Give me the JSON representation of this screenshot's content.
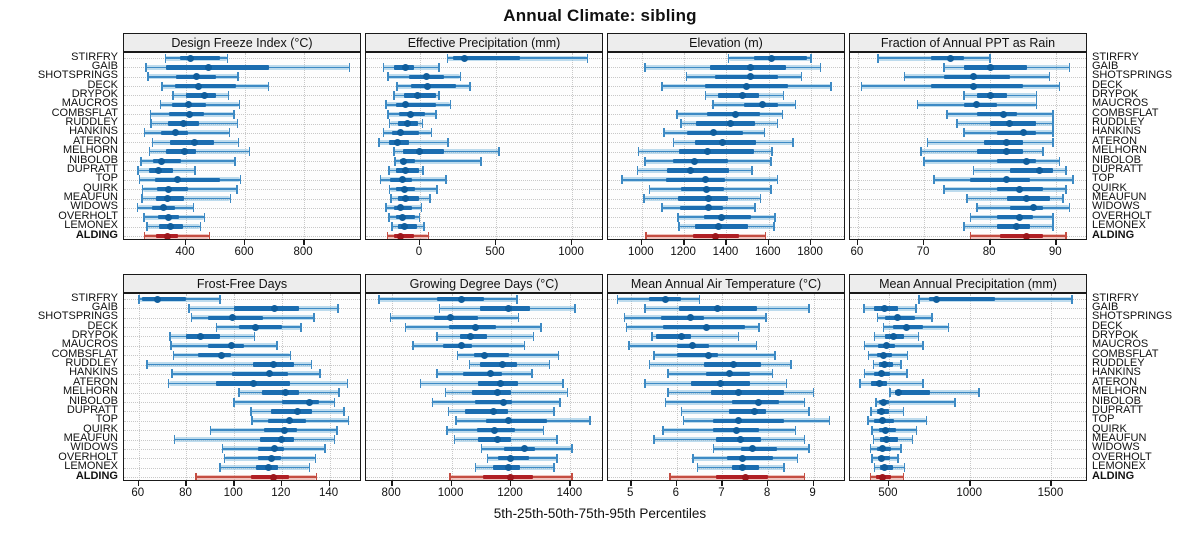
{
  "title": "Annual Climate: sibling",
  "caption": "5th-25th-50th-75th-95th Percentiles",
  "sites": [
    "STIRFRY",
    "GAIB",
    "SHOTSPRINGS",
    "DECK",
    "DRYPOK",
    "MAUCROS",
    "COMBSFLAT",
    "RUDDLEY",
    "HANKINS",
    "ATERON",
    "MELHORN",
    "NIBOLOB",
    "DUPRATT",
    "TOP",
    "QUIRK",
    "MEAUFUN",
    "WIDOWS",
    "OVERHOLT",
    "LEMONEX",
    "ALDING"
  ],
  "highlight_site": "ALDING",
  "colors": {
    "blue_line": "#3d8ac4",
    "blue_band": "rgba(125,185,222,0.5)",
    "blue_box": "#1b6db0",
    "blue_dot": "#0f5d9c",
    "red_line": "#c44d42",
    "red_band": "rgba(228,148,139,0.55)",
    "red_box": "#b01f24",
    "red_dot": "#9c161b",
    "grid": "#c8c8c8",
    "border": "#1a1a1a",
    "strip_bg": "#ededed"
  },
  "chart_data": [
    {
      "type": "percentile-dotplot",
      "title": "Design Freeze Index (°C)",
      "row": 0,
      "col": 0,
      "xlim": [
        190,
        996
      ],
      "ticks": [
        400,
        600,
        800
      ],
      "percentiles": [
        "5th",
        "25th",
        "50th",
        "75th",
        "95th"
      ],
      "series": [
        [
          330,
          380,
          415,
          515,
          540
        ],
        [
          264,
          332,
          475,
          681,
          953
        ],
        [
          271,
          366,
          434,
          502,
          576
        ],
        [
          318,
          363,
          442,
          569,
          680
        ],
        [
          355,
          400,
          462,
          502,
          544
        ],
        [
          313,
          351,
          408,
          468,
          581
        ],
        [
          279,
          341,
          411,
          460,
          562
        ],
        [
          281,
          338,
          392,
          445,
          575
        ],
        [
          259,
          315,
          366,
          406,
          547
        ],
        [
          287,
          347,
          428,
          494,
          577
        ],
        [
          276,
          332,
          394,
          434,
          615
        ],
        [
          247,
          287,
          318,
          383,
          566
        ],
        [
          238,
          276,
          306,
          355,
          430
        ],
        [
          242,
          296,
          372,
          516,
          584
        ],
        [
          253,
          302,
          340,
          406,
          573
        ],
        [
          250,
          298,
          336,
          394,
          550
        ],
        [
          236,
          284,
          324,
          363,
          426
        ],
        [
          257,
          304,
          340,
          377,
          462
        ],
        [
          268,
          310,
          347,
          389,
          449
        ],
        [
          259,
          298,
          336,
          374,
          479
        ]
      ]
    },
    {
      "type": "percentile-dotplot",
      "title": "Effective Precipitation (mm)",
      "row": 0,
      "col": 1,
      "xlim": [
        -355,
        1210
      ],
      "ticks": [
        0,
        500,
        1000
      ],
      "percentiles": [
        "5th",
        "25th",
        "50th",
        "75th",
        "95th"
      ],
      "series": [
        [
          180,
          215,
          290,
          660,
          1100
        ],
        [
          -240,
          -170,
          -95,
          -40,
          125
        ],
        [
          -210,
          -70,
          45,
          160,
          265
        ],
        [
          -150,
          -60,
          50,
          235,
          330
        ],
        [
          -170,
          -105,
          -15,
          105,
          125
        ],
        [
          -225,
          -160,
          -95,
          105,
          200
        ],
        [
          -210,
          -140,
          -65,
          35,
          105
        ],
        [
          -200,
          -145,
          -85,
          -15,
          15
        ],
        [
          -240,
          -185,
          -125,
          -5,
          75
        ],
        [
          -270,
          -205,
          -145,
          -75,
          185
        ],
        [
          -170,
          -110,
          -5,
          160,
          520
        ],
        [
          -165,
          -130,
          -110,
          -30,
          400
        ],
        [
          -205,
          -160,
          -95,
          -5,
          20
        ],
        [
          -260,
          -195,
          -115,
          -50,
          170
        ],
        [
          -200,
          -155,
          -100,
          -30,
          110
        ],
        [
          -190,
          -145,
          -95,
          -5,
          65
        ],
        [
          -225,
          -170,
          -125,
          -50,
          10
        ],
        [
          -205,
          -160,
          -115,
          -35,
          -5
        ],
        [
          -185,
          -145,
          -105,
          -20,
          25
        ],
        [
          -215,
          -170,
          -125,
          -40,
          55
        ]
      ]
    },
    {
      "type": "percentile-dotplot",
      "title": "Elevation (m)",
      "row": 0,
      "col": 2,
      "xlim": [
        840,
        1965
      ],
      "ticks": [
        1000,
        1200,
        1400,
        1600,
        1800
      ],
      "percentiles": [
        "5th",
        "25th",
        "50th",
        "75th",
        "95th"
      ],
      "series": [
        [
          1410,
          1530,
          1615,
          1780,
          1800
        ],
        [
          1015,
          1320,
          1515,
          1680,
          1845
        ],
        [
          1210,
          1345,
          1515,
          1645,
          1755
        ],
        [
          1095,
          1300,
          1495,
          1690,
          1895
        ],
        [
          1300,
          1360,
          1475,
          1555,
          1670
        ],
        [
          1335,
          1485,
          1570,
          1645,
          1725
        ],
        [
          1165,
          1310,
          1445,
          1560,
          1665
        ],
        [
          1185,
          1255,
          1420,
          1535,
          1640
        ],
        [
          1105,
          1215,
          1340,
          1480,
          1580
        ],
        [
          1150,
          1250,
          1380,
          1540,
          1715
        ],
        [
          985,
          1175,
          1310,
          1530,
          1615
        ],
        [
          1015,
          1145,
          1250,
          1405,
          1610
        ],
        [
          980,
          1120,
          1230,
          1410,
          1520
        ],
        [
          905,
          1115,
          1300,
          1395,
          1640
        ],
        [
          1035,
          1185,
          1305,
          1390,
          1610
        ],
        [
          1010,
          1170,
          1315,
          1405,
          1560
        ],
        [
          1095,
          1180,
          1315,
          1385,
          1535
        ],
        [
          1170,
          1295,
          1375,
          1515,
          1630
        ],
        [
          1175,
          1250,
          1360,
          1500,
          1625
        ],
        [
          1020,
          1240,
          1350,
          1460,
          1585
        ]
      ]
    },
    {
      "type": "percentile-dotplot",
      "title": "Fraction of Annual PPT as Rain",
      "row": 0,
      "col": 3,
      "xlim": [
        58.8,
        94.8
      ],
      "ticks": [
        60,
        70,
        80,
        90
      ],
      "percentiles": [
        "5th",
        "25th",
        "50th",
        "75th",
        "95th"
      ],
      "series": [
        [
          63,
          71,
          74,
          76,
          80
        ],
        [
          73,
          76,
          80,
          85.5,
          92
        ],
        [
          67,
          73,
          77.5,
          83,
          89
        ],
        [
          60.5,
          71,
          77.5,
          85,
          90.5
        ],
        [
          76,
          78,
          80,
          82.5,
          87
        ],
        [
          69,
          76,
          78,
          81,
          87
        ],
        [
          73.5,
          78,
          82,
          84,
          89.5
        ],
        [
          75,
          80,
          83,
          87,
          89.5
        ],
        [
          76,
          81,
          85,
          87,
          89.5
        ],
        [
          70.5,
          79,
          82.5,
          85,
          89.5
        ],
        [
          69.5,
          78,
          82.5,
          85,
          88
        ],
        [
          70,
          81,
          85.5,
          87,
          90.5
        ],
        [
          77.5,
          83,
          87.5,
          89.5,
          91.5
        ],
        [
          71.5,
          77,
          82.5,
          86,
          92.5
        ],
        [
          73,
          81,
          84.5,
          88,
          91.5
        ],
        [
          76.5,
          82.5,
          85.5,
          89,
          91
        ],
        [
          78,
          83,
          86.5,
          88,
          92
        ],
        [
          77,
          81,
          84.5,
          86.5,
          89.5
        ],
        [
          76,
          81,
          84,
          86,
          89.5
        ],
        [
          77,
          81.5,
          85.5,
          88,
          91.5
        ]
      ]
    },
    {
      "type": "percentile-dotplot",
      "title": "Frost-Free Days",
      "row": 1,
      "col": 0,
      "xlim": [
        53.8,
        153.6
      ],
      "ticks": [
        60,
        80,
        100,
        120,
        140
      ],
      "percentiles": [
        "5th",
        "25th",
        "50th",
        "75th",
        "95th"
      ],
      "series": [
        [
          60,
          61.5,
          68,
          80,
          94
        ],
        [
          81,
          100,
          117,
          127,
          143.5
        ],
        [
          82,
          89,
          99.5,
          112,
          133.5
        ],
        [
          92.5,
          102,
          109,
          120,
          128
        ],
        [
          73,
          80,
          86,
          94,
          108.5
        ],
        [
          73.5,
          89,
          99,
          104,
          118
        ],
        [
          74.5,
          85,
          94.5,
          98.5,
          123.5
        ],
        [
          63.5,
          108,
          116.5,
          125,
          132.5
        ],
        [
          74,
          99,
          115,
          122.5,
          136
        ],
        [
          72.5,
          92.5,
          108,
          123.5,
          147.5
        ],
        [
          102,
          111.5,
          121.5,
          127,
          144
        ],
        [
          100,
          120,
          131.5,
          135.5,
          142
        ],
        [
          107,
          115.5,
          126.5,
          132.5,
          146
        ],
        [
          107.5,
          114,
          123,
          130,
          148
        ],
        [
          90,
          112.5,
          121,
          126.5,
          143
        ],
        [
          75,
          111,
          120,
          125,
          142
        ],
        [
          95,
          110,
          117,
          121,
          138
        ],
        [
          96,
          110,
          115.5,
          119.5,
          134
        ],
        [
          94,
          109,
          114.5,
          118.5,
          131.5
        ],
        [
          84,
          107,
          116.5,
          123,
          134.5
        ]
      ]
    },
    {
      "type": "percentile-dotplot",
      "title": "Growing Degree Days (°C)",
      "row": 1,
      "col": 1,
      "xlim": [
        712,
        1513
      ],
      "ticks": [
        800,
        1000,
        1200,
        1400
      ],
      "percentiles": [
        "5th",
        "25th",
        "50th",
        "75th",
        "95th"
      ],
      "series": [
        [
          755,
          950,
          1035,
          1110,
          1220
        ],
        [
          960,
          1095,
          1190,
          1265,
          1415
        ],
        [
          795,
          940,
          995,
          1090,
          1225
        ],
        [
          845,
          990,
          1080,
          1150,
          1300
        ],
        [
          950,
          1030,
          1065,
          1120,
          1275
        ],
        [
          870,
          970,
          1035,
          1070,
          1245
        ],
        [
          1020,
          1075,
          1110,
          1195,
          1360
        ],
        [
          1060,
          1095,
          1170,
          1220,
          1330
        ],
        [
          950,
          1040,
          1130,
          1170,
          1270
        ],
        [
          895,
          1090,
          1165,
          1225,
          1375
        ],
        [
          980,
          1070,
          1155,
          1200,
          1390
        ],
        [
          935,
          1080,
          1175,
          1205,
          1365
        ],
        [
          990,
          1045,
          1140,
          1190,
          1345
        ],
        [
          1015,
          1115,
          1190,
          1320,
          1465
        ],
        [
          985,
          1085,
          1145,
          1215,
          1310
        ],
        [
          1010,
          1090,
          1155,
          1200,
          1355
        ],
        [
          1100,
          1175,
          1245,
          1280,
          1405
        ],
        [
          1120,
          1155,
          1200,
          1260,
          1355
        ],
        [
          1080,
          1140,
          1190,
          1230,
          1345
        ],
        [
          995,
          1105,
          1200,
          1275,
          1405
        ]
      ]
    },
    {
      "type": "percentile-dotplot",
      "title": "Mean Annual Air Temperature (°C)",
      "row": 1,
      "col": 2,
      "xlim": [
        4.49,
        9.71
      ],
      "ticks": [
        5,
        6,
        7,
        8,
        9
      ],
      "percentiles": [
        "5th",
        "25th",
        "50th",
        "75th",
        "95th"
      ],
      "series": [
        [
          4.7,
          5.4,
          5.75,
          6.1,
          6.5
        ],
        [
          5.3,
          6.05,
          6.9,
          7.75,
          8.9
        ],
        [
          4.85,
          5.65,
          6.3,
          6.6,
          7.95
        ],
        [
          4.9,
          5.7,
          6.65,
          7.5,
          7.8
        ],
        [
          5.45,
          5.55,
          6.1,
          6.3,
          7.35
        ],
        [
          4.95,
          6.0,
          6.35,
          6.7,
          7.75
        ],
        [
          5.5,
          6.0,
          6.7,
          6.9,
          8.15
        ],
        [
          5.4,
          6.6,
          7.25,
          7.85,
          8.5
        ],
        [
          5.8,
          6.65,
          7.15,
          7.6,
          8.1
        ],
        [
          5.3,
          6.3,
          6.95,
          7.6,
          8.4
        ],
        [
          5.8,
          6.75,
          7.35,
          8.35,
          9.0
        ],
        [
          5.75,
          7.2,
          7.8,
          8.25,
          8.8
        ],
        [
          6.1,
          7.15,
          7.7,
          7.95,
          8.9
        ],
        [
          6.15,
          6.8,
          7.35,
          8.35,
          9.35
        ],
        [
          5.7,
          6.8,
          7.3,
          7.8,
          8.6
        ],
        [
          5.5,
          6.85,
          7.4,
          7.85,
          8.8
        ],
        [
          6.8,
          7.4,
          7.65,
          8.2,
          8.9
        ],
        [
          6.35,
          7.1,
          7.45,
          8.1,
          8.65
        ],
        [
          6.45,
          7.2,
          7.45,
          7.8,
          8.35
        ],
        [
          5.85,
          6.85,
          7.5,
          8.0,
          8.8
        ]
      ]
    },
    {
      "type": "percentile-dotplot",
      "title": "Mean Annual Precipitation (mm)",
      "row": 1,
      "col": 3,
      "xlim": [
        260,
        1725
      ],
      "ticks": [
        500,
        1000,
        1500
      ],
      "percentiles": [
        "5th",
        "25th",
        "50th",
        "75th",
        "95th"
      ],
      "series": [
        [
          685,
          745,
          795,
          1150,
          1625
        ],
        [
          345,
          405,
          470,
          555,
          665
        ],
        [
          430,
          475,
          555,
          660,
          765
        ],
        [
          465,
          525,
          610,
          710,
          865
        ],
        [
          410,
          475,
          525,
          590,
          680
        ],
        [
          350,
          430,
          485,
          540,
          710
        ],
        [
          375,
          425,
          465,
          520,
          615
        ],
        [
          405,
          440,
          475,
          525,
          575
        ],
        [
          350,
          410,
          455,
          505,
          610
        ],
        [
          320,
          390,
          440,
          490,
          710
        ],
        [
          505,
          540,
          560,
          755,
          1055
        ],
        [
          420,
          440,
          465,
          500,
          905
        ],
        [
          390,
          425,
          455,
          500,
          590
        ],
        [
          370,
          410,
          460,
          530,
          730
        ],
        [
          395,
          440,
          480,
          545,
          670
        ],
        [
          405,
          445,
          485,
          555,
          645
        ],
        [
          385,
          425,
          460,
          515,
          575
        ],
        [
          395,
          430,
          455,
          505,
          555
        ],
        [
          410,
          445,
          475,
          525,
          595
        ],
        [
          385,
          420,
          460,
          510,
          590
        ]
      ]
    }
  ]
}
